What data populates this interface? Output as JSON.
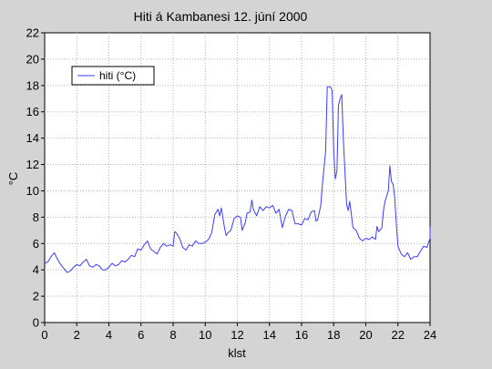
{
  "chart_data": {
    "type": "line",
    "title": "Hiti á Kambanesi 12. júní 2000",
    "xlabel": "klst",
    "ylabel": "°C",
    "xlim": [
      0,
      24
    ],
    "ylim": [
      0,
      22
    ],
    "x_ticks": [
      "0",
      "2",
      "4",
      "6",
      "8",
      "10",
      "12",
      "14",
      "16",
      "18",
      "20",
      "22",
      "24"
    ],
    "y_ticks": [
      "0",
      "2",
      "4",
      "6",
      "8",
      "10",
      "12",
      "14",
      "16",
      "18",
      "20",
      "22"
    ],
    "grid": true,
    "legend_position": "top-left",
    "series": [
      {
        "name": "hiti (°C)",
        "color": "#3b3bff",
        "points": [
          [
            0.0,
            4.5
          ],
          [
            0.2,
            4.6
          ],
          [
            0.4,
            5.0
          ],
          [
            0.6,
            5.3
          ],
          [
            0.8,
            4.8
          ],
          [
            1.0,
            4.4
          ],
          [
            1.2,
            4.1
          ],
          [
            1.4,
            3.8
          ],
          [
            1.6,
            3.9
          ],
          [
            1.8,
            4.2
          ],
          [
            2.0,
            4.4
          ],
          [
            2.2,
            4.3
          ],
          [
            2.4,
            4.6
          ],
          [
            2.6,
            4.8
          ],
          [
            2.8,
            4.3
          ],
          [
            3.0,
            4.2
          ],
          [
            3.2,
            4.4
          ],
          [
            3.4,
            4.3
          ],
          [
            3.6,
            4.0
          ],
          [
            3.8,
            4.0
          ],
          [
            4.0,
            4.2
          ],
          [
            4.2,
            4.5
          ],
          [
            4.4,
            4.3
          ],
          [
            4.6,
            4.4
          ],
          [
            4.8,
            4.7
          ],
          [
            5.0,
            4.6
          ],
          [
            5.2,
            4.8
          ],
          [
            5.4,
            5.1
          ],
          [
            5.6,
            5.0
          ],
          [
            5.8,
            5.6
          ],
          [
            6.0,
            5.5
          ],
          [
            6.2,
            5.9
          ],
          [
            6.4,
            6.2
          ],
          [
            6.6,
            5.6
          ],
          [
            6.8,
            5.4
          ],
          [
            7.0,
            5.2
          ],
          [
            7.2,
            5.7
          ],
          [
            7.4,
            6.0
          ],
          [
            7.6,
            5.8
          ],
          [
            7.8,
            5.9
          ],
          [
            8.0,
            5.8
          ],
          [
            8.1,
            6.9
          ],
          [
            8.2,
            6.8
          ],
          [
            8.4,
            6.4
          ],
          [
            8.6,
            5.7
          ],
          [
            8.8,
            5.5
          ],
          [
            9.0,
            5.9
          ],
          [
            9.2,
            5.8
          ],
          [
            9.4,
            6.2
          ],
          [
            9.6,
            6.0
          ],
          [
            9.8,
            6.0
          ],
          [
            10.0,
            6.1
          ],
          [
            10.2,
            6.3
          ],
          [
            10.4,
            6.8
          ],
          [
            10.6,
            8.2
          ],
          [
            10.8,
            8.6
          ],
          [
            10.9,
            8.1
          ],
          [
            11.0,
            8.7
          ],
          [
            11.2,
            7.2
          ],
          [
            11.3,
            6.6
          ],
          [
            11.4,
            6.8
          ],
          [
            11.6,
            7.0
          ],
          [
            11.8,
            7.9
          ],
          [
            12.0,
            8.1
          ],
          [
            12.2,
            8.0
          ],
          [
            12.3,
            7.0
          ],
          [
            12.5,
            7.6
          ],
          [
            12.6,
            8.3
          ],
          [
            12.8,
            8.4
          ],
          [
            12.9,
            9.3
          ],
          [
            13.0,
            8.6
          ],
          [
            13.2,
            8.1
          ],
          [
            13.4,
            8.8
          ],
          [
            13.6,
            8.5
          ],
          [
            13.8,
            8.8
          ],
          [
            14.0,
            8.7
          ],
          [
            14.2,
            8.9
          ],
          [
            14.4,
            8.3
          ],
          [
            14.6,
            8.6
          ],
          [
            14.8,
            7.2
          ],
          [
            15.0,
            8.1
          ],
          [
            15.2,
            8.6
          ],
          [
            15.4,
            8.5
          ],
          [
            15.6,
            7.5
          ],
          [
            15.8,
            7.5
          ],
          [
            16.0,
            7.4
          ],
          [
            16.2,
            7.9
          ],
          [
            16.4,
            7.8
          ],
          [
            16.6,
            8.4
          ],
          [
            16.8,
            8.5
          ],
          [
            16.9,
            7.7
          ],
          [
            17.0,
            7.8
          ],
          [
            17.2,
            8.9
          ],
          [
            17.3,
            10.5
          ],
          [
            17.5,
            13.0
          ],
          [
            17.6,
            17.9
          ],
          [
            17.8,
            17.9
          ],
          [
            17.9,
            17.6
          ],
          [
            18.0,
            13.0
          ],
          [
            18.1,
            10.9
          ],
          [
            18.2,
            11.5
          ],
          [
            18.3,
            16.5
          ],
          [
            18.4,
            17.0
          ],
          [
            18.5,
            17.3
          ],
          [
            18.6,
            14.0
          ],
          [
            18.8,
            9.0
          ],
          [
            18.9,
            8.5
          ],
          [
            19.0,
            9.2
          ],
          [
            19.2,
            7.2
          ],
          [
            19.4,
            7.0
          ],
          [
            19.6,
            6.4
          ],
          [
            19.8,
            6.2
          ],
          [
            20.0,
            6.4
          ],
          [
            20.2,
            6.3
          ],
          [
            20.4,
            6.5
          ],
          [
            20.6,
            6.3
          ],
          [
            20.7,
            7.3
          ],
          [
            20.8,
            6.9
          ],
          [
            21.0,
            7.2
          ],
          [
            21.1,
            8.5
          ],
          [
            21.2,
            9.2
          ],
          [
            21.4,
            10.0
          ],
          [
            21.5,
            11.9
          ],
          [
            21.6,
            10.7
          ],
          [
            21.7,
            10.5
          ],
          [
            21.8,
            9.5
          ],
          [
            21.9,
            7.5
          ],
          [
            22.0,
            5.8
          ],
          [
            22.2,
            5.2
          ],
          [
            22.4,
            5.0
          ],
          [
            22.6,
            5.3
          ],
          [
            22.8,
            4.8
          ],
          [
            23.0,
            5.0
          ],
          [
            23.2,
            5.0
          ],
          [
            23.4,
            5.4
          ],
          [
            23.6,
            5.8
          ],
          [
            23.8,
            5.7
          ],
          [
            24.0,
            6.4
          ],
          [
            24.2,
            7.3
          ]
        ]
      }
    ]
  }
}
